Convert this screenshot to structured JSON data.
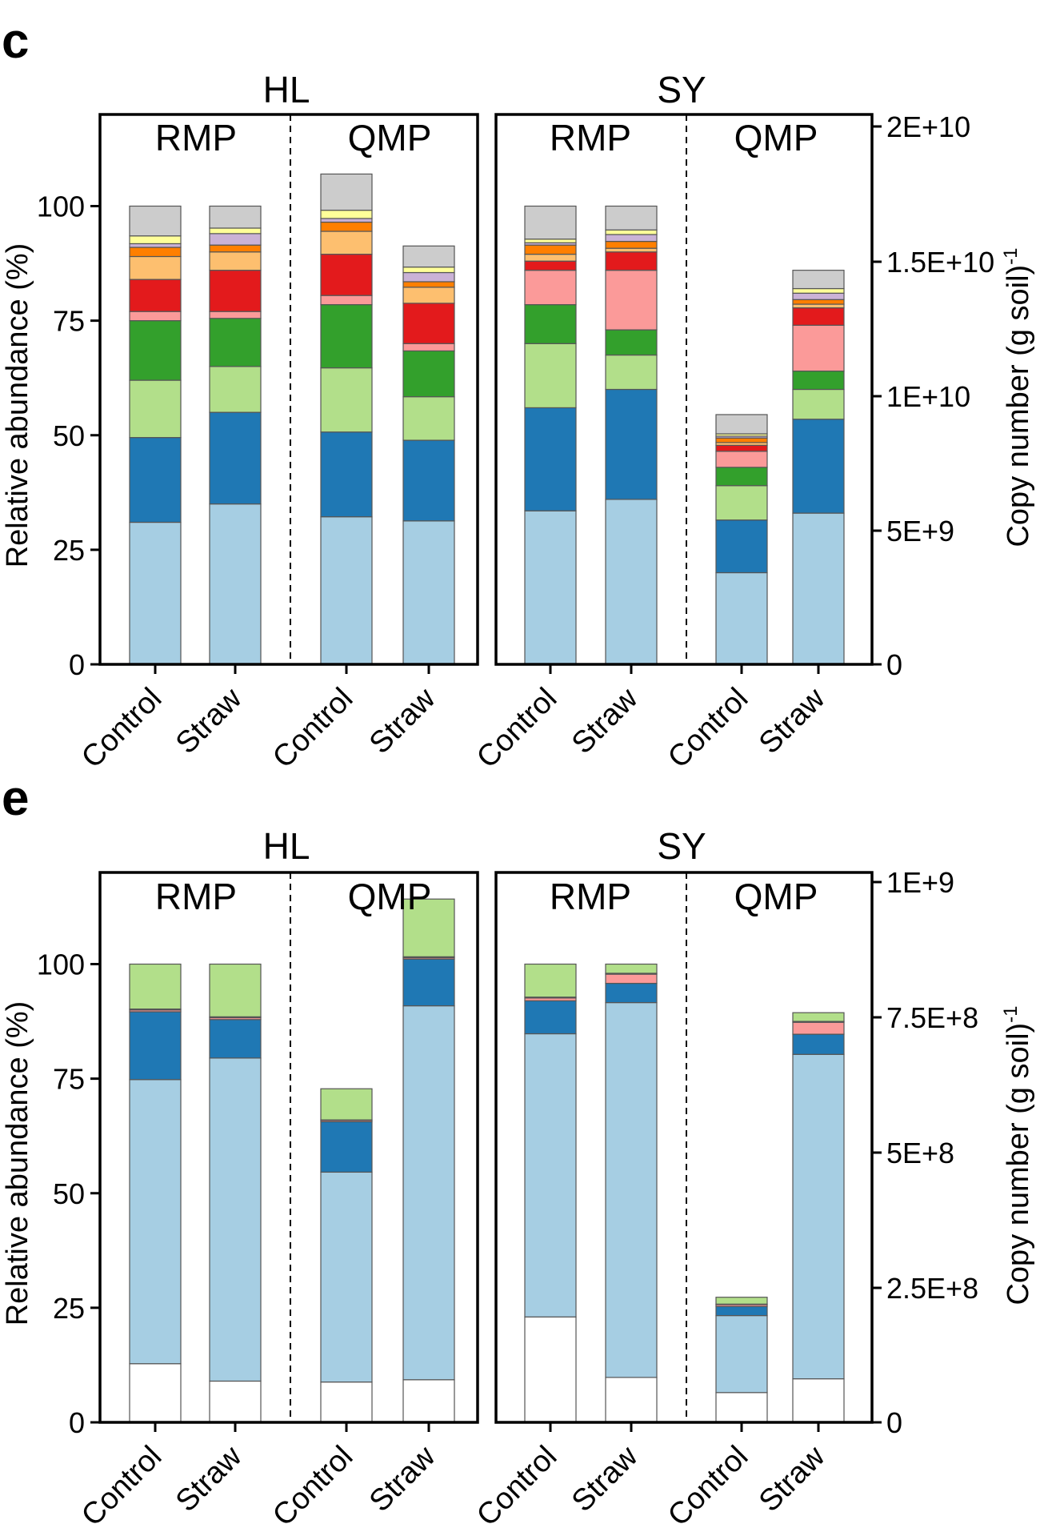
{
  "colors": {
    "light_blue": "#a6cee3",
    "dark_blue": "#1f78b4",
    "light_green": "#b2df8a",
    "dark_green": "#33a02c",
    "pink": "#fb9a99",
    "red": "#e31a1c",
    "light_orange": "#fdbf6f",
    "orange": "#ff7f00",
    "lavender": "#cab2d6",
    "yellow": "#ffff99",
    "gray": "#cccccc",
    "white": "#ffffff"
  },
  "chart_data": [
    {
      "type": "bar",
      "stacked": true,
      "panel_letter": "c",
      "left_axis": {
        "title": "Relative abundance (%)",
        "range": [
          0,
          120
        ],
        "ticks": [
          "0",
          "25",
          "50",
          "75",
          "100"
        ]
      },
      "right_axis": {
        "title": "Copy number (g soil)",
        "title_superscript": "-1",
        "range": [
          0,
          20000000000
        ],
        "ticks": [
          "0",
          "5E+9",
          "1E+10",
          "1.5E+10",
          "2E+10"
        ]
      },
      "sites": [
        {
          "name": "HL",
          "methods": [
            "RMP",
            "QMP"
          ],
          "categories": [
            "Control",
            "Straw",
            "Control",
            "Straw"
          ],
          "bars": [
            [
              [
                "light_blue",
                31
              ],
              [
                "dark_blue",
                18.5
              ],
              [
                "light_green",
                12.5
              ],
              [
                "dark_green",
                13
              ],
              [
                "pink",
                2
              ],
              [
                "red",
                7
              ],
              [
                "light_orange",
                5
              ],
              [
                "orange",
                2
              ],
              [
                "lavender",
                0.8
              ],
              [
                "yellow",
                1.7
              ],
              [
                "gray",
                6.5
              ]
            ],
            [
              [
                "light_blue",
                35
              ],
              [
                "dark_blue",
                20
              ],
              [
                "light_green",
                10
              ],
              [
                "dark_green",
                10.5
              ],
              [
                "pink",
                1.5
              ],
              [
                "red",
                9
              ],
              [
                "light_orange",
                4
              ],
              [
                "orange",
                1.5
              ],
              [
                "lavender",
                2.5
              ],
              [
                "yellow",
                1.2
              ],
              [
                "gray",
                4.8
              ]
            ],
            [
              [
                "light_blue",
                32.2
              ],
              [
                "dark_blue",
                18.5
              ],
              [
                "light_green",
                14
              ],
              [
                "dark_green",
                13.8
              ],
              [
                "pink",
                2
              ],
              [
                "red",
                9
              ],
              [
                "light_orange",
                5
              ],
              [
                "orange",
                2
              ],
              [
                "lavender",
                0.8
              ],
              [
                "yellow",
                1.8
              ],
              [
                "gray",
                7.9
              ]
            ],
            [
              [
                "light_blue",
                31.3
              ],
              [
                "dark_blue",
                17.6
              ],
              [
                "light_green",
                9.5
              ],
              [
                "dark_green",
                10
              ],
              [
                "pink",
                1.6
              ],
              [
                "red",
                8.8
              ],
              [
                "light_orange",
                3.5
              ],
              [
                "orange",
                1.2
              ],
              [
                "lavender",
                2
              ],
              [
                "yellow",
                1.2
              ],
              [
                "gray",
                4.6
              ]
            ]
          ]
        },
        {
          "name": "SY",
          "methods": [
            "RMP",
            "QMP"
          ],
          "categories": [
            "Control",
            "Straw",
            "Control",
            "Straw"
          ],
          "bars": [
            [
              [
                "light_blue",
                33.5
              ],
              [
                "dark_blue",
                22.5
              ],
              [
                "light_green",
                14
              ],
              [
                "dark_green",
                8.5
              ],
              [
                "pink",
                7.5
              ],
              [
                "red",
                2
              ],
              [
                "light_orange",
                1.5
              ],
              [
                "orange",
                2
              ],
              [
                "lavender",
                0.5
              ],
              [
                "yellow",
                0.8
              ],
              [
                "gray",
                7.2
              ]
            ],
            [
              [
                "light_blue",
                36
              ],
              [
                "dark_blue",
                24
              ],
              [
                "light_green",
                7.5
              ],
              [
                "dark_green",
                5.5
              ],
              [
                "pink",
                13
              ],
              [
                "red",
                4
              ],
              [
                "light_orange",
                0.8
              ],
              [
                "orange",
                1.5
              ],
              [
                "lavender",
                1.5
              ],
              [
                "yellow",
                1
              ],
              [
                "gray",
                5.2
              ]
            ],
            [
              [
                "light_blue",
                20
              ],
              [
                "dark_blue",
                11.5
              ],
              [
                "light_green",
                7.5
              ],
              [
                "dark_green",
                4
              ],
              [
                "pink",
                3.5
              ],
              [
                "red",
                1.3
              ],
              [
                "light_orange",
                0.6
              ],
              [
                "orange",
                1
              ],
              [
                "lavender",
                0.4
              ],
              [
                "yellow",
                0.5
              ],
              [
                "gray",
                4.2
              ]
            ],
            [
              [
                "light_blue",
                33
              ],
              [
                "dark_blue",
                20.5
              ],
              [
                "light_green",
                6.5
              ],
              [
                "dark_green",
                4
              ],
              [
                "pink",
                10
              ],
              [
                "red",
                3.8
              ],
              [
                "light_orange",
                0.8
              ],
              [
                "orange",
                1
              ],
              [
                "lavender",
                1.4
              ],
              [
                "yellow",
                1
              ],
              [
                "gray",
                4
              ]
            ]
          ]
        }
      ]
    },
    {
      "type": "bar",
      "stacked": true,
      "panel_letter": "e",
      "left_axis": {
        "title": "Relative abundance (%)",
        "range": [
          0,
          120
        ],
        "ticks": [
          "0",
          "25",
          "50",
          "75",
          "100"
        ]
      },
      "right_axis": {
        "title": "Copy number (g soil)",
        "title_superscript": "-1",
        "range": [
          0,
          1000000000
        ],
        "ticks": [
          "0",
          "2.5E+8",
          "5E+8",
          "7.5E+8",
          "1E+9"
        ]
      },
      "sites": [
        {
          "name": "HL",
          "methods": [
            "RMP",
            "QMP"
          ],
          "categories": [
            "Control",
            "Straw",
            "Control",
            "Straw"
          ],
          "bars": [
            [
              [
                "white",
                12.8
              ],
              [
                "light_blue",
                62
              ],
              [
                "dark_blue",
                14.8
              ],
              [
                "pink",
                0.4
              ],
              [
                "red",
                0.2
              ],
              [
                "light_green",
                9.8
              ]
            ],
            [
              [
                "white",
                9
              ],
              [
                "light_blue",
                70.5
              ],
              [
                "dark_blue",
                8.4
              ],
              [
                "pink",
                0.4
              ],
              [
                "red",
                0.2
              ],
              [
                "light_green",
                11.5
              ]
            ],
            [
              [
                "white",
                8.8
              ],
              [
                "light_blue",
                45.8
              ],
              [
                "dark_blue",
                11
              ],
              [
                "pink",
                0.3
              ],
              [
                "red",
                0.1
              ],
              [
                "light_green",
                6.8
              ]
            ],
            [
              [
                "white",
                9.3
              ],
              [
                "light_blue",
                81.6
              ],
              [
                "dark_blue",
                10.2
              ],
              [
                "pink",
                0.3
              ],
              [
                "red",
                0.2
              ],
              [
                "light_green",
                12.6
              ]
            ]
          ]
        },
        {
          "name": "SY",
          "methods": [
            "RMP",
            "QMP"
          ],
          "categories": [
            "Control",
            "Straw",
            "Control",
            "Straw"
          ],
          "bars": [
            [
              [
                "white",
                23
              ],
              [
                "light_blue",
                61.8
              ],
              [
                "dark_blue",
                7.2
              ],
              [
                "pink",
                0.6
              ],
              [
                "red",
                0.2
              ],
              [
                "light_green",
                7.2
              ]
            ],
            [
              [
                "white",
                9.8
              ],
              [
                "light_blue",
                81.8
              ],
              [
                "dark_blue",
                4.2
              ],
              [
                "pink",
                2
              ],
              [
                "red",
                0.2
              ],
              [
                "light_green",
                2
              ]
            ],
            [
              [
                "white",
                6.5
              ],
              [
                "light_blue",
                16.8
              ],
              [
                "dark_blue",
                2
              ],
              [
                "pink",
                0.4
              ],
              [
                "red",
                0.1
              ],
              [
                "light_green",
                1.5
              ]
            ],
            [
              [
                "white",
                9.5
              ],
              [
                "light_blue",
                70.8
              ],
              [
                "dark_blue",
                4.4
              ],
              [
                "pink",
                2.6
              ],
              [
                "red",
                0.2
              ],
              [
                "light_green",
                1.9
              ]
            ]
          ]
        }
      ]
    }
  ]
}
